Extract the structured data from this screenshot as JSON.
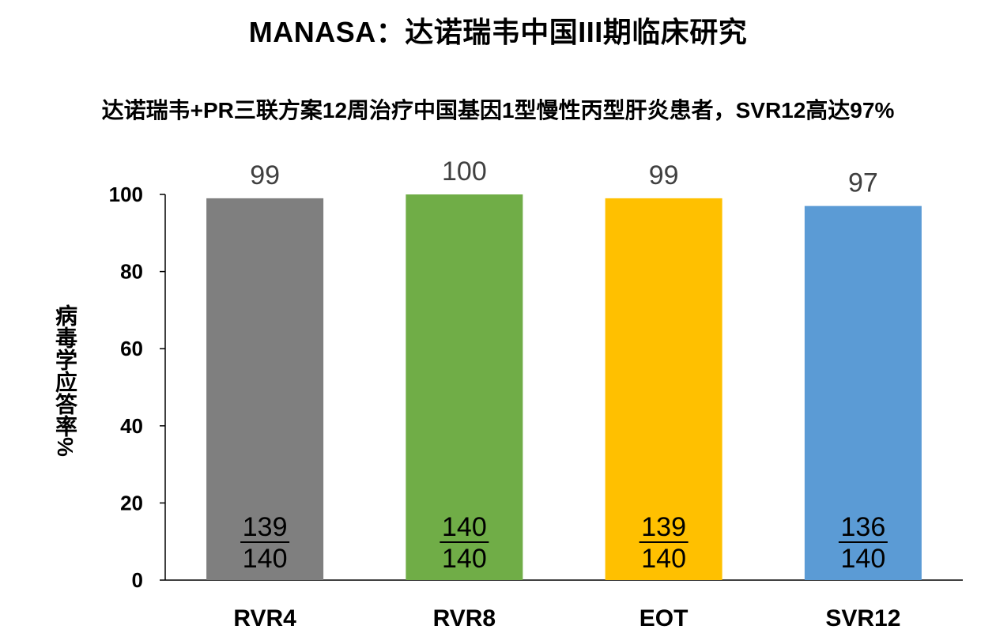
{
  "title": "MANASA：达诺瑞韦中国III期临床研究",
  "subtitle": "达诺瑞韦+PR三联方案12周治疗中国基因1型慢性丙型肝炎患者，SVR12高达97%",
  "chart_data": {
    "type": "bar",
    "ylabel": "病毒学应答率%",
    "ylim": [
      0,
      100
    ],
    "yticks": [
      0,
      20,
      40,
      60,
      80,
      100
    ],
    "grid": false,
    "categories": [
      "RVR4",
      "RVR8",
      "EOT",
      "SVR12"
    ],
    "values": [
      99,
      100,
      99,
      97
    ],
    "value_labels": [
      "99",
      "100",
      "99",
      "97"
    ],
    "fractions": [
      {
        "numerator": "139",
        "denominator": "140"
      },
      {
        "numerator": "140",
        "denominator": "140"
      },
      {
        "numerator": "139",
        "denominator": "140"
      },
      {
        "numerator": "136",
        "denominator": "140"
      }
    ],
    "colors": [
      "#7f7f7f",
      "#70ad47",
      "#ffc000",
      "#5b9bd5"
    ]
  }
}
